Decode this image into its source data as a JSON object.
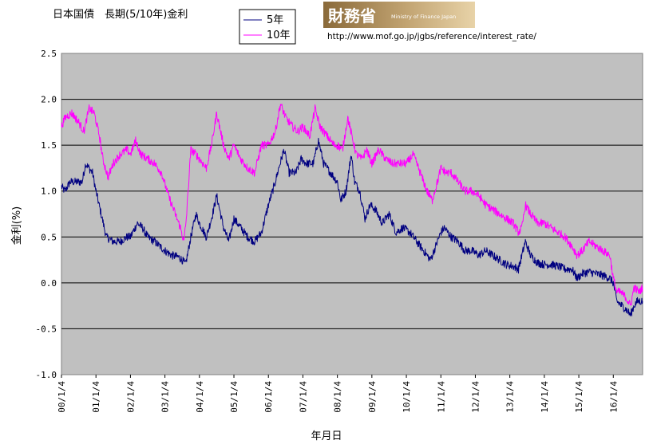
{
  "chart_data": {
    "type": "line",
    "title": "日本国債　長期(5/10年)金利",
    "xlabel": "年月日",
    "ylabel": "金利(%)",
    "ylim": [
      -1.0,
      2.5
    ],
    "yticks": [
      -1.0,
      -0.5,
      0.0,
      0.5,
      1.0,
      1.5,
      2.0,
      2.5
    ],
    "ytick_labels": [
      "-1.0",
      "-0.5",
      "0.0",
      "0.5",
      "1.0",
      "1.5",
      "2.0",
      "2.5"
    ],
    "xticks": [
      2000.0,
      2001.0,
      2002.0,
      2003.0,
      2004.0,
      2005.0,
      2006.0,
      2007.0,
      2008.0,
      2009.0,
      2010.0,
      2011.0,
      2012.0,
      2013.0,
      2014.0,
      2015.0,
      2016.0
    ],
    "xtick_labels": [
      "00/1/4",
      "01/1/4",
      "02/1/4",
      "03/1/4",
      "04/1/4",
      "05/1/4",
      "06/1/4",
      "07/1/4",
      "08/1/4",
      "09/1/4",
      "10/1/4",
      "11/1/4",
      "12/1/4",
      "13/1/4",
      "14/1/4",
      "15/1/4",
      "16/1/4"
    ],
    "xlim": [
      2000.0,
      2016.85
    ],
    "grid": "horizontal",
    "plot_background": "#c0c0c0",
    "series": [
      {
        "name": "5年",
        "color": "#000080",
        "x": [
          2000.0,
          2000.1,
          2000.25,
          2000.45,
          2000.6,
          2000.7,
          2000.9,
          2001.0,
          2001.15,
          2001.3,
          2001.5,
          2001.7,
          2001.9,
          2002.0,
          2002.2,
          2002.35,
          2002.5,
          2002.7,
          2002.85,
          2003.0,
          2003.2,
          2003.4,
          2003.5,
          2003.6,
          2003.75,
          2003.9,
          2004.0,
          2004.2,
          2004.35,
          2004.5,
          2004.7,
          2004.85,
          2005.0,
          2005.2,
          2005.4,
          2005.6,
          2005.8,
          2006.0,
          2006.2,
          2006.3,
          2006.45,
          2006.6,
          2006.8,
          2006.95,
          2007.1,
          2007.3,
          2007.45,
          2007.6,
          2007.8,
          2008.0,
          2008.1,
          2008.25,
          2008.4,
          2008.5,
          2008.65,
          2008.8,
          2008.95,
          2009.1,
          2009.3,
          2009.5,
          2009.7,
          2009.9,
          2010.1,
          2010.3,
          2010.5,
          2010.7,
          2010.85,
          2011.0,
          2011.1,
          2011.3,
          2011.5,
          2011.7,
          2011.9,
          2012.1,
          2012.3,
          2012.5,
          2012.7,
          2012.9,
          2013.1,
          2013.25,
          2013.35,
          2013.45,
          2013.6,
          2013.8,
          2014.0,
          2014.2,
          2014.4,
          2014.6,
          2014.8,
          2014.95,
          2015.1,
          2015.3,
          2015.5,
          2015.7,
          2015.9,
          2016.0,
          2016.1,
          2016.25,
          2016.4,
          2016.5,
          2016.6,
          2016.7,
          2016.85
        ],
        "values": [
          1.05,
          1.0,
          1.1,
          1.1,
          1.1,
          1.3,
          1.2,
          1.0,
          0.75,
          0.5,
          0.45,
          0.45,
          0.5,
          0.5,
          0.65,
          0.6,
          0.5,
          0.45,
          0.4,
          0.35,
          0.3,
          0.28,
          0.25,
          0.2,
          0.5,
          0.75,
          0.65,
          0.5,
          0.7,
          0.95,
          0.6,
          0.45,
          0.7,
          0.6,
          0.5,
          0.45,
          0.55,
          0.85,
          1.1,
          1.25,
          1.45,
          1.2,
          1.2,
          1.35,
          1.3,
          1.3,
          1.55,
          1.3,
          1.2,
          1.1,
          0.9,
          1.0,
          1.4,
          1.1,
          1.0,
          0.7,
          0.85,
          0.8,
          0.65,
          0.75,
          0.55,
          0.6,
          0.55,
          0.45,
          0.35,
          0.25,
          0.4,
          0.55,
          0.6,
          0.5,
          0.45,
          0.35,
          0.35,
          0.3,
          0.35,
          0.3,
          0.25,
          0.2,
          0.18,
          0.15,
          0.3,
          0.45,
          0.3,
          0.22,
          0.2,
          0.2,
          0.18,
          0.15,
          0.15,
          0.05,
          0.1,
          0.12,
          0.1,
          0.08,
          0.05,
          0.0,
          -0.2,
          -0.25,
          -0.3,
          -0.35,
          -0.25,
          -0.2,
          -0.2
        ]
      },
      {
        "name": "10年",
        "color": "#ff00ff",
        "x": [
          2000.0,
          2000.1,
          2000.3,
          2000.5,
          2000.65,
          2000.8,
          2000.95,
          2001.1,
          2001.2,
          2001.35,
          2001.5,
          2001.7,
          2001.9,
          2002.0,
          2002.15,
          2002.3,
          2002.5,
          2002.7,
          2002.9,
          2003.1,
          2003.3,
          2003.45,
          2003.55,
          2003.62,
          2003.75,
          2003.9,
          2004.0,
          2004.2,
          2004.35,
          2004.5,
          2004.7,
          2004.85,
          2005.0,
          2005.2,
          2005.4,
          2005.6,
          2005.8,
          2006.0,
          2006.2,
          2006.35,
          2006.5,
          2006.7,
          2006.85,
          2007.0,
          2007.2,
          2007.35,
          2007.5,
          2007.7,
          2007.9,
          2008.0,
          2008.15,
          2008.3,
          2008.45,
          2008.55,
          2008.7,
          2008.85,
          2009.0,
          2009.2,
          2009.4,
          2009.6,
          2009.8,
          2010.0,
          2010.2,
          2010.4,
          2010.6,
          2010.75,
          2010.9,
          2011.0,
          2011.15,
          2011.3,
          2011.5,
          2011.7,
          2011.9,
          2012.1,
          2012.3,
          2012.5,
          2012.7,
          2012.9,
          2013.1,
          2013.25,
          2013.35,
          2013.45,
          2013.6,
          2013.8,
          2014.0,
          2014.2,
          2014.4,
          2014.6,
          2014.8,
          2014.95,
          2015.1,
          2015.3,
          2015.5,
          2015.7,
          2015.9,
          2016.0,
          2016.1,
          2016.2,
          2016.35,
          2016.5,
          2016.6,
          2016.75,
          2016.85
        ],
        "values": [
          1.7,
          1.8,
          1.85,
          1.75,
          1.65,
          1.9,
          1.85,
          1.6,
          1.35,
          1.15,
          1.3,
          1.4,
          1.45,
          1.4,
          1.55,
          1.4,
          1.35,
          1.3,
          1.2,
          0.95,
          0.75,
          0.6,
          0.45,
          0.7,
          1.45,
          1.4,
          1.35,
          1.25,
          1.5,
          1.85,
          1.5,
          1.35,
          1.5,
          1.35,
          1.25,
          1.2,
          1.5,
          1.5,
          1.65,
          1.95,
          1.8,
          1.7,
          1.65,
          1.7,
          1.6,
          1.9,
          1.7,
          1.6,
          1.5,
          1.5,
          1.45,
          1.8,
          1.55,
          1.4,
          1.35,
          1.45,
          1.3,
          1.45,
          1.35,
          1.3,
          1.3,
          1.3,
          1.4,
          1.2,
          1.0,
          0.9,
          1.1,
          1.25,
          1.2,
          1.2,
          1.1,
          1.0,
          1.0,
          0.95,
          0.85,
          0.8,
          0.75,
          0.7,
          0.65,
          0.55,
          0.6,
          0.85,
          0.75,
          0.65,
          0.65,
          0.6,
          0.55,
          0.5,
          0.4,
          0.3,
          0.35,
          0.45,
          0.4,
          0.35,
          0.3,
          0.05,
          -0.1,
          -0.1,
          -0.15,
          -0.25,
          -0.05,
          -0.1,
          -0.05
        ]
      }
    ]
  },
  "logo": {
    "main_text": "財務省",
    "sub_text": "Ministry of Finance Japan",
    "colors": [
      "#8a6a3a",
      "#c2a472",
      "#e8d3a8"
    ]
  },
  "source_url": "http://www.mof.go.jp/jgbs/reference/interest_rate/"
}
